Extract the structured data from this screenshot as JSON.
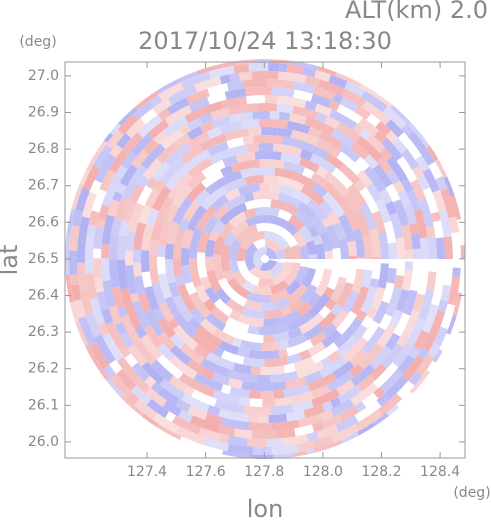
{
  "chart_data": {
    "type": "radar-ppi",
    "title": "2017/10/24 13:18:30",
    "subtitle": "ALT(km) 2.0",
    "x_label": "lon",
    "x_unit": "(deg)",
    "y_label": "lat",
    "y_unit": "(deg)",
    "xlim": [
      127.12,
      128.485
    ],
    "xticks": [
      {
        "value": 127.4,
        "label": "127.4"
      },
      {
        "value": 127.6,
        "label": "127.6"
      },
      {
        "value": 127.8,
        "label": "127.8"
      },
      {
        "value": 128.0,
        "label": "128.0"
      },
      {
        "value": 128.2,
        "label": "128.2"
      },
      {
        "value": 128.4,
        "label": "128.4"
      }
    ],
    "ylim": [
      25.956,
      27.038
    ],
    "yticks": [
      {
        "value": 26.0,
        "label": "26.0"
      },
      {
        "value": 26.1,
        "label": "26.1"
      },
      {
        "value": 26.2,
        "label": "26.2"
      },
      {
        "value": 26.3,
        "label": "26.3"
      },
      {
        "value": 26.4,
        "label": "26.4"
      },
      {
        "value": 26.5,
        "label": "26.5"
      },
      {
        "value": 26.6,
        "label": "26.6"
      },
      {
        "value": 26.7,
        "label": "26.7"
      },
      {
        "value": 26.8,
        "label": "26.8"
      },
      {
        "value": 26.9,
        "label": "26.9"
      },
      {
        "value": 27.0,
        "label": "27.0"
      }
    ],
    "positive_color": "#f2a4a4",
    "negative_color": "#a8a8f2"
  }
}
